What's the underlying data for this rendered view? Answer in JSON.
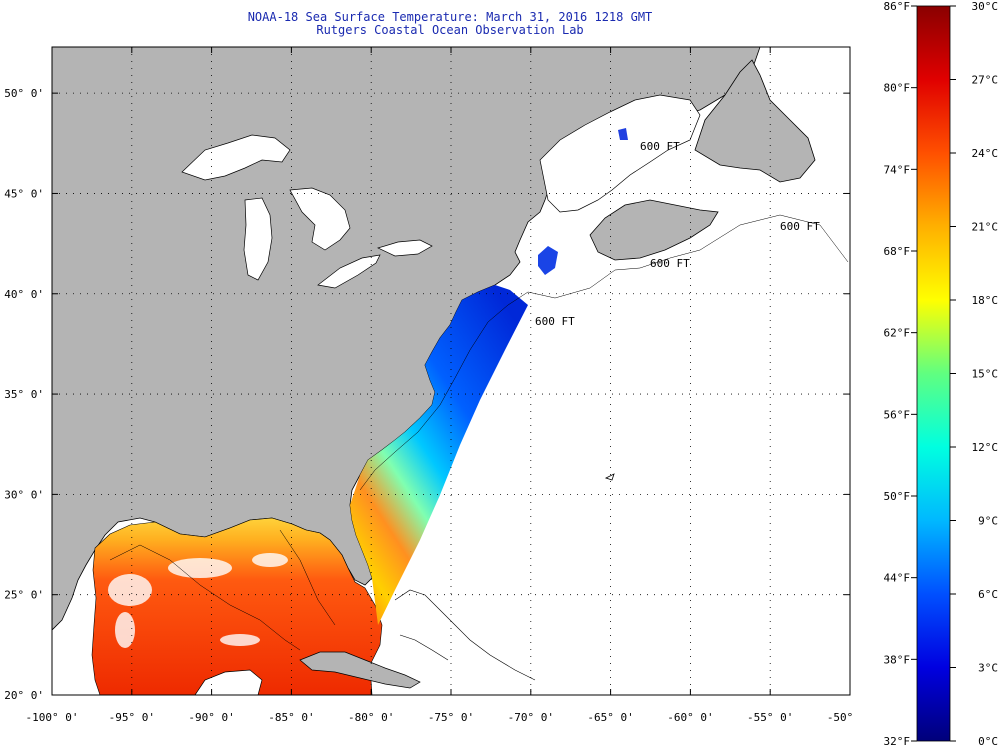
{
  "title": {
    "line1": "NOAA-18 Sea Surface Temperature:  March 31, 2016 1218 GMT",
    "line2": "Rutgers Coastal Ocean Observation Lab"
  },
  "map": {
    "projection": "lat-lon",
    "lon_range": [
      -100,
      -50
    ],
    "lat_range": [
      20,
      52.3
    ],
    "lon_ticks": [
      {
        "value": -100,
        "label": "-100° 0'"
      },
      {
        "value": -95,
        "label": "-95° 0'"
      },
      {
        "value": -90,
        "label": "-90° 0'"
      },
      {
        "value": -85,
        "label": "-85° 0'"
      },
      {
        "value": -80,
        "label": "-80° 0'"
      },
      {
        "value": -75,
        "label": "-75° 0'"
      },
      {
        "value": -70,
        "label": "-70° 0'"
      },
      {
        "value": -65,
        "label": "-65° 0'"
      },
      {
        "value": -60,
        "label": "-60° 0'"
      },
      {
        "value": -55,
        "label": "-55° 0'"
      },
      {
        "value": -50,
        "label": "-50° 0'"
      }
    ],
    "lat_ticks": [
      {
        "value": 20,
        "label": "20° 0'"
      },
      {
        "value": 25,
        "label": "25° 0'"
      },
      {
        "value": 30,
        "label": "30° 0'"
      },
      {
        "value": 35,
        "label": "35° 0'"
      },
      {
        "value": 40,
        "label": "40° 0'"
      },
      {
        "value": 45,
        "label": "45° 0'"
      },
      {
        "value": 50,
        "label": "50° 0'"
      }
    ],
    "grid": "dotted",
    "colors": {
      "land": "#b4b4b4",
      "ocean_no_data": "#ffffff",
      "coastline": "#000000",
      "title_text": "#1a2ab0"
    },
    "contour_labels": [
      "600 FT",
      "600 FT",
      "600 FT",
      "600 FT"
    ]
  },
  "colorbar": {
    "fahrenheit_labels": [
      "86°F",
      "80°F",
      "74°F",
      "68°F",
      "62°F",
      "56°F",
      "50°F",
      "44°F",
      "38°F",
      "32°F"
    ],
    "celsius_labels": [
      "30°C",
      "27°C",
      "24°C",
      "21°C",
      "18°C",
      "15°C",
      "12°C",
      "9°C",
      "6°C",
      "3°C",
      "0°C"
    ],
    "range_c": [
      0,
      30
    ],
    "gradient_stops": [
      "#00007a",
      "#0000e0",
      "#0050ff",
      "#00b8ff",
      "#00ffe0",
      "#60ff80",
      "#ffff00",
      "#ffb000",
      "#ff5000",
      "#e00000",
      "#8a0000"
    ]
  }
}
